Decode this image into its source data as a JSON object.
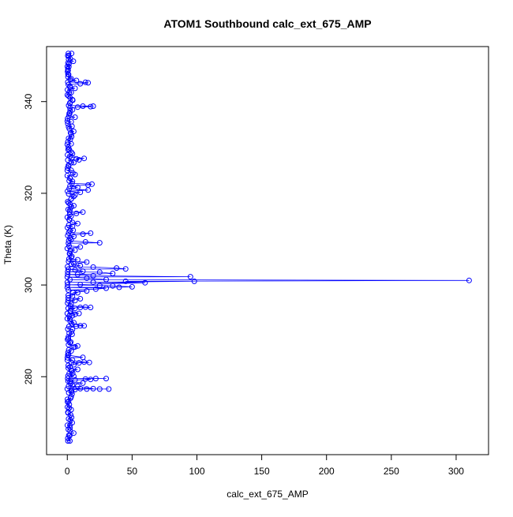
{
  "chart_data": {
    "type": "scatter",
    "title": "ATOM1 Southbound calc_ext_675_AMP",
    "xlabel": "calc_ext_675_AMP",
    "ylabel": "Theta (K)",
    "xlim": [
      -16,
      325
    ],
    "ylim": [
      263,
      352
    ],
    "x_ticks": [
      0,
      50,
      100,
      150,
      200,
      250,
      300
    ],
    "y_ticks": [
      280,
      300,
      320,
      340
    ],
    "grid": false,
    "legend": "none",
    "marker": "open-circle",
    "connected": true,
    "series_color": "#0000ff",
    "points": [
      [
        0.5,
        266.0
      ],
      [
        1.2,
        267.2
      ],
      [
        0.8,
        268.5
      ],
      [
        2.0,
        269.4
      ],
      [
        1.0,
        270.8
      ],
      [
        0.6,
        272.1
      ],
      [
        1.5,
        273.2
      ],
      [
        0.9,
        274.6
      ],
      [
        2.5,
        275.3
      ],
      [
        1.1,
        276.5
      ],
      [
        3.0,
        277.0
      ],
      [
        6.0,
        277.2
      ],
      [
        10.0,
        277.4
      ],
      [
        15.0,
        277.3
      ],
      [
        20.0,
        277.4
      ],
      [
        25.0,
        277.3
      ],
      [
        32.0,
        277.3
      ],
      [
        8.0,
        277.9
      ],
      [
        4.0,
        278.2
      ],
      [
        12.0,
        278.6
      ],
      [
        2.0,
        279.0
      ],
      [
        6.0,
        279.3
      ],
      [
        14.0,
        279.5
      ],
      [
        22.0,
        279.6
      ],
      [
        30.0,
        279.6
      ],
      [
        18.0,
        279.4
      ],
      [
        5.0,
        280.1
      ],
      [
        1.5,
        280.7
      ],
      [
        3.0,
        281.3
      ],
      [
        8.0,
        281.6
      ],
      [
        2.0,
        282.1
      ],
      [
        5.0,
        282.6
      ],
      [
        9.0,
        283.0
      ],
      [
        13.0,
        283.2
      ],
      [
        17.0,
        283.1
      ],
      [
        4.0,
        283.6
      ],
      [
        12.0,
        284.2
      ],
      [
        1.0,
        284.8
      ],
      [
        3.0,
        285.6
      ],
      [
        6.0,
        286.5
      ],
      [
        8.0,
        286.7
      ],
      [
        2.0,
        287.4
      ],
      [
        0.8,
        288.3
      ],
      [
        1.5,
        289.5
      ],
      [
        4.0,
        290.3
      ],
      [
        7.0,
        291.0
      ],
      [
        10.0,
        291.1
      ],
      [
        13.0,
        291.1
      ],
      [
        5.0,
        291.8
      ],
      [
        2.0,
        292.6
      ],
      [
        4.0,
        293.3
      ],
      [
        6.0,
        293.6
      ],
      [
        9.0,
        293.8
      ],
      [
        2.5,
        294.3
      ],
      [
        6.0,
        294.9
      ],
      [
        10.0,
        295.1
      ],
      [
        14.0,
        295.2
      ],
      [
        18.0,
        295.1
      ],
      [
        3.0,
        295.8
      ],
      [
        6.0,
        296.6
      ],
      [
        10.0,
        297.0
      ],
      [
        4.0,
        297.6
      ],
      [
        8.0,
        298.3
      ],
      [
        15.0,
        298.7
      ],
      [
        22.0,
        299.1
      ],
      [
        30.0,
        299.3
      ],
      [
        40.0,
        299.5
      ],
      [
        50.0,
        299.6
      ],
      [
        35.0,
        299.8
      ],
      [
        25.0,
        299.9
      ],
      [
        10.0,
        300.1
      ],
      [
        60.0,
        300.5
      ],
      [
        98.0,
        300.8
      ],
      [
        20.0,
        300.6
      ],
      [
        45.0,
        300.8
      ],
      [
        310.0,
        301.0
      ],
      [
        30.0,
        301.2
      ],
      [
        15.0,
        301.5
      ],
      [
        95.0,
        301.8
      ],
      [
        20.0,
        302.0
      ],
      [
        8.0,
        302.3
      ],
      [
        35.0,
        302.5
      ],
      [
        25.0,
        302.8
      ],
      [
        12.0,
        303.0
      ],
      [
        6.0,
        303.3
      ],
      [
        38.0,
        303.7
      ],
      [
        45.0,
        303.5
      ],
      [
        20.0,
        303.9
      ],
      [
        10.0,
        304.2
      ],
      [
        5.0,
        304.6
      ],
      [
        15.0,
        305.0
      ],
      [
        8.0,
        305.5
      ],
      [
        3.0,
        306.0
      ],
      [
        2.0,
        306.9
      ],
      [
        6.0,
        307.6
      ],
      [
        10.0,
        308.3
      ],
      [
        14.0,
        309.4
      ],
      [
        25.0,
        309.2
      ],
      [
        3.0,
        309.9
      ],
      [
        5.0,
        310.6
      ],
      [
        12.0,
        311.1
      ],
      [
        18.0,
        311.3
      ],
      [
        2.0,
        311.8
      ],
      [
        4.0,
        312.8
      ],
      [
        8.0,
        313.4
      ],
      [
        1.5,
        314.2
      ],
      [
        3.0,
        315.0
      ],
      [
        7.0,
        315.6
      ],
      [
        12.0,
        315.9
      ],
      [
        2.0,
        316.4
      ],
      [
        5.0,
        317.3
      ],
      [
        1.0,
        317.9
      ],
      [
        3.0,
        318.8
      ],
      [
        6.0,
        319.6
      ],
      [
        10.0,
        320.2
      ],
      [
        16.0,
        320.7
      ],
      [
        8.0,
        321.3
      ],
      [
        16.0,
        321.8
      ],
      [
        19.0,
        322.0
      ],
      [
        4.0,
        322.6
      ],
      [
        2.0,
        323.3
      ],
      [
        6.0,
        324.1
      ],
      [
        3.0,
        325.0
      ],
      [
        1.0,
        325.9
      ],
      [
        5.0,
        326.7
      ],
      [
        9.0,
        327.3
      ],
      [
        13.0,
        327.6
      ],
      [
        7.0,
        327.5
      ],
      [
        2.0,
        328.0
      ],
      [
        4.0,
        328.6
      ],
      [
        1.5,
        329.6
      ],
      [
        3.0,
        330.8
      ],
      [
        1.0,
        332.0
      ],
      [
        2.5,
        333.2
      ],
      [
        1.0,
        334.5
      ],
      [
        3.0,
        335.6
      ],
      [
        6.0,
        336.6
      ],
      [
        1.5,
        337.4
      ],
      [
        4.0,
        338.2
      ],
      [
        8.0,
        338.8
      ],
      [
        12.0,
        339.0
      ],
      [
        18.0,
        338.9
      ],
      [
        20.0,
        339.0
      ],
      [
        2.0,
        339.6
      ],
      [
        4.0,
        340.4
      ],
      [
        1.0,
        341.2
      ],
      [
        3.0,
        342.0
      ],
      [
        6.0,
        342.9
      ],
      [
        2.0,
        343.4
      ],
      [
        10.0,
        343.9
      ],
      [
        14.0,
        344.2
      ],
      [
        16.0,
        344.1
      ],
      [
        7.0,
        344.6
      ],
      [
        3.0,
        345.0
      ],
      [
        1.0,
        345.9
      ],
      [
        0.6,
        346.8
      ],
      [
        1.2,
        347.6
      ],
      [
        0.5,
        348.4
      ],
      [
        1.0,
        349.2
      ],
      [
        0.4,
        350.0
      ],
      [
        0.8,
        350.5
      ]
    ],
    "dense_band": {
      "x_max": 5.0,
      "y_range": [
        266.0,
        350.5
      ],
      "count": 150
    }
  }
}
